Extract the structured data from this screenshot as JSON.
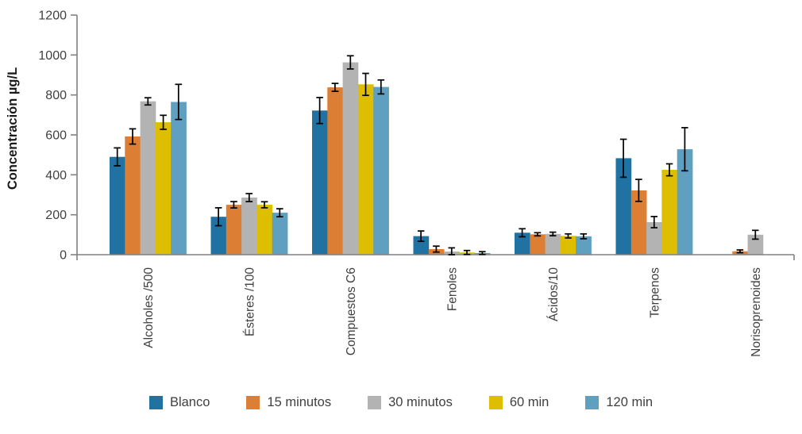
{
  "chart_data": {
    "type": "bar",
    "title": "",
    "ylabel": "Concentración µg/L",
    "xlabel": "",
    "ylim": [
      0,
      1200
    ],
    "yticks": [
      0,
      200,
      400,
      600,
      800,
      1000,
      1200
    ],
    "grid": false,
    "legend_position": "bottom",
    "error_bars": true,
    "categories": [
      "Alcoholes /500",
      "Ésteres /100",
      "Compuestos C6",
      "Fenoles",
      "Ácidos/10",
      "Terpenos",
      "Norisoprenoides"
    ],
    "series": [
      {
        "name": "Blanco",
        "color": "#1F72A1",
        "values": [
          490,
          190,
          722,
          93,
          110,
          483,
          0
        ],
        "errors": [
          45,
          45,
          65,
          26,
          20,
          95,
          0
        ]
      },
      {
        "name": "15 minutos",
        "color": "#DC7E34",
        "values": [
          592,
          250,
          838,
          28,
          102,
          322,
          17
        ],
        "errors": [
          38,
          16,
          20,
          15,
          8,
          55,
          7
        ]
      },
      {
        "name": "30 minutos",
        "color": "#B3B3B3",
        "values": [
          768,
          286,
          963,
          16,
          104,
          163,
          100
        ],
        "errors": [
          18,
          20,
          33,
          18,
          9,
          28,
          22
        ]
      },
      {
        "name": "60 min",
        "color": "#DDBE00",
        "values": [
          663,
          250,
          853,
          11,
          94,
          425,
          0
        ],
        "errors": [
          35,
          15,
          55,
          10,
          10,
          30,
          0
        ]
      },
      {
        "name": "120 min",
        "color": "#5F9FC0",
        "values": [
          765,
          210,
          840,
          8,
          92,
          528,
          0
        ],
        "errors": [
          88,
          20,
          35,
          7,
          12,
          108,
          0
        ]
      }
    ],
    "colors": {
      "axis_line": "#808080",
      "tick_label": "#404040",
      "axis_title": "#1a1a1a",
      "error_bar": "#000000",
      "background": "#ffffff"
    }
  }
}
